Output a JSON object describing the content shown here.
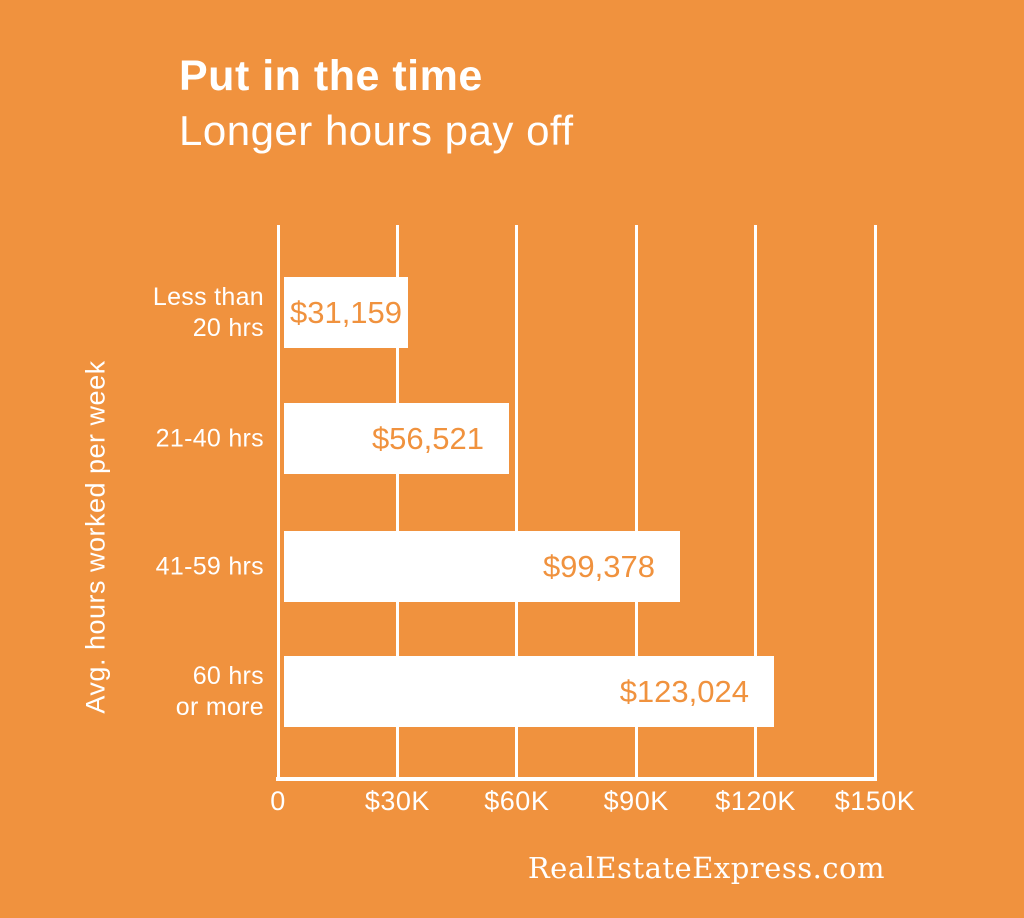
{
  "chart_data": {
    "type": "bar",
    "orientation": "horizontal",
    "title": "Put in the time",
    "subtitle": "Longer hours pay off",
    "ylabel": "Avg. hours worked per week",
    "categories": [
      [
        "Less than",
        "20 hrs"
      ],
      [
        "21-40 hrs"
      ],
      [
        "41-59 hrs"
      ],
      [
        "60 hrs",
        "or more"
      ]
    ],
    "values": [
      31159,
      56521,
      99378,
      123024
    ],
    "value_labels": [
      "$31,159",
      "$56,521",
      "$99,378",
      "$123,024"
    ],
    "x_ticks": [
      "0",
      "$30K",
      "$60K",
      "$90K",
      "$120K",
      "$150K"
    ],
    "xlim": [
      0,
      150000
    ],
    "grid": "vertical-gridlines",
    "legend": "none"
  },
  "source": "RealEstateExpress.com",
  "colors": {
    "background": "#F0923E",
    "bar": "#FFFFFF",
    "value_text": "#F0923E",
    "grid": "#FFFFFF",
    "text": "#FFFFFF"
  }
}
